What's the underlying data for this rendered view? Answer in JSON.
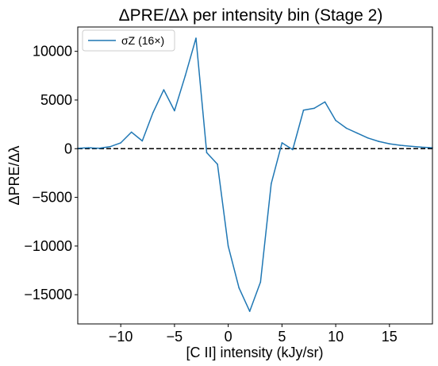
{
  "chart_data": {
    "type": "line",
    "title": "ΔPRE/Δλ per intensity bin (Stage 2)",
    "xlabel": "[C II] intensity (kJy/sr)",
    "ylabel": "ΔPRE/Δλ",
    "xlim": [
      -14,
      19
    ],
    "ylim": [
      -18000,
      12500
    ],
    "xticks": [
      -10,
      -5,
      0,
      5,
      10,
      15
    ],
    "yticks": [
      -15000,
      -10000,
      -5000,
      0,
      5000,
      10000
    ],
    "xtick_labels": [
      "−10",
      "−5",
      "0",
      "5",
      "10",
      "15"
    ],
    "ytick_labels": [
      "−15000",
      "−10000",
      "−5000",
      "0",
      "5000",
      "10000"
    ],
    "grid": false,
    "legend_position": "top-left",
    "line_color": "#1f77b4",
    "reference_line": {
      "y": 0,
      "style": "dashed",
      "color": "#000000"
    },
    "series": [
      {
        "name": "σZ (16×)",
        "x": [
          -14,
          -13,
          -12,
          -11,
          -10,
          -9,
          -8,
          -7,
          -6,
          -5,
          -4,
          -3,
          -2,
          -1,
          0,
          1,
          2,
          3,
          4,
          5,
          6,
          7,
          8,
          9,
          10,
          11,
          12,
          13,
          14,
          15,
          16,
          17,
          18,
          19
        ],
        "values": [
          50,
          100,
          50,
          200,
          600,
          1700,
          800,
          3700,
          6050,
          3900,
          7500,
          11350,
          -400,
          -1600,
          -10000,
          -14300,
          -16700,
          -13700,
          -3600,
          600,
          -100,
          3950,
          4150,
          4800,
          2900,
          2100,
          1600,
          1100,
          750,
          500,
          350,
          250,
          150,
          100
        ]
      }
    ]
  }
}
